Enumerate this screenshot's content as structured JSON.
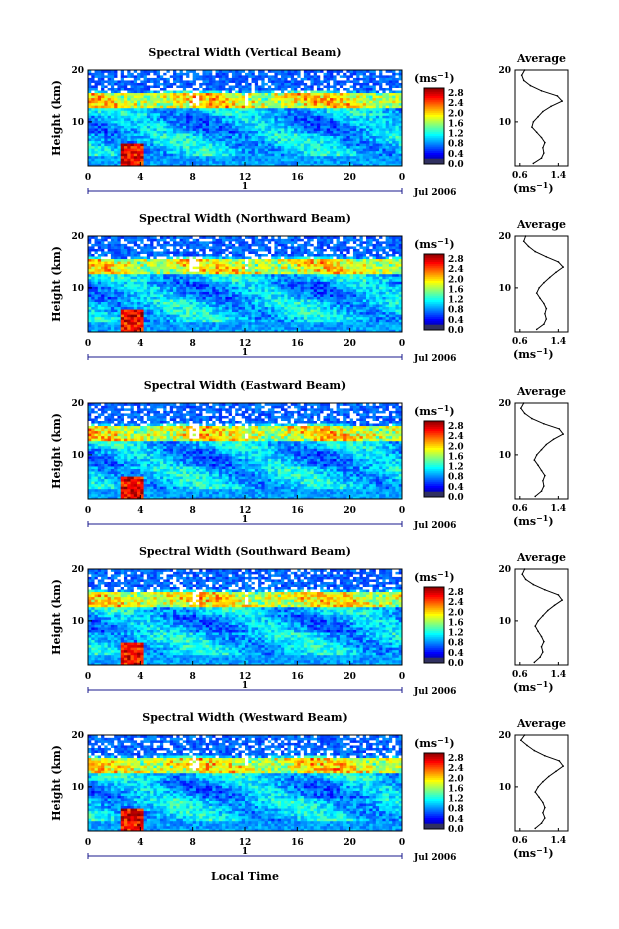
{
  "figure": {
    "xlabel": "Local Time",
    "colorbar_unit": "(ms",
    "colorbar_exponent": "−1",
    "profile_unit": "(ms",
    "profile_exponent": "−1",
    "date_label": "Jul 2006",
    "day_marker_label": "1"
  },
  "chart_data": [
    {
      "type": "heatmap",
      "title": "Spectral Width (Vertical Beam)",
      "ylabel": "Height (km)",
      "x_ticks": [
        "0",
        "4",
        "8",
        "12",
        "16",
        "20",
        "0"
      ],
      "y_ticks": [
        "20",
        "10"
      ],
      "xlim": [
        0,
        24
      ],
      "ylim": [
        1.5,
        20
      ],
      "colorbar_ticks": [
        "2.8",
        "2.4",
        "2.0",
        "1.6",
        "1.2",
        "0.8",
        "0.4",
        "0.0"
      ],
      "colorbar_range": [
        0.0,
        3.0
      ],
      "profile": {
        "title": "Average",
        "x_ticks": [
          "0.6",
          "1.4"
        ],
        "y_ticks": [
          "20",
          "10"
        ],
        "xlim": [
          0.5,
          1.6
        ],
        "heights": [
          2,
          3,
          4,
          5,
          6,
          7,
          8,
          9,
          10,
          11,
          12,
          13,
          14,
          15,
          16,
          17,
          18,
          19,
          20
        ],
        "values": [
          0.88,
          1.05,
          1.1,
          1.08,
          1.12,
          1.05,
          0.95,
          0.85,
          0.88,
          0.98,
          1.08,
          1.25,
          1.48,
          1.38,
          1.05,
          0.82,
          0.68,
          0.64,
          0.7
        ]
      }
    },
    {
      "type": "heatmap",
      "title": "Spectral Width (Northward Beam)",
      "ylabel": "Height (km)",
      "x_ticks": [
        "0",
        "4",
        "8",
        "12",
        "16",
        "20",
        "0"
      ],
      "y_ticks": [
        "20",
        "10"
      ],
      "xlim": [
        0,
        24
      ],
      "ylim": [
        1.5,
        20
      ],
      "colorbar_ticks": [
        "2.8",
        "2.4",
        "2.0",
        "1.6",
        "1.2",
        "0.8",
        "0.4",
        "0.0"
      ],
      "colorbar_range": [
        0.0,
        3.0
      ],
      "profile": {
        "title": "Average",
        "x_ticks": [
          "0.6",
          "1.4"
        ],
        "y_ticks": [
          "20",
          "10"
        ],
        "xlim": [
          0.5,
          1.6
        ],
        "heights": [
          2,
          3,
          4,
          5,
          6,
          7,
          8,
          9,
          10,
          11,
          12,
          13,
          14,
          15,
          16,
          17,
          18,
          19,
          20
        ],
        "values": [
          0.95,
          1.1,
          1.15,
          1.12,
          1.15,
          1.1,
          1.02,
          0.95,
          1.0,
          1.1,
          1.22,
          1.35,
          1.5,
          1.4,
          1.15,
          0.92,
          0.78,
          0.68,
          0.72
        ]
      }
    },
    {
      "type": "heatmap",
      "title": "Spectral Width (Eastward Beam)",
      "ylabel": "Height (km)",
      "x_ticks": [
        "0",
        "4",
        "8",
        "12",
        "16",
        "20",
        "0"
      ],
      "y_ticks": [
        "20",
        "10"
      ],
      "xlim": [
        0,
        24
      ],
      "ylim": [
        1.5,
        20
      ],
      "colorbar_ticks": [
        "2.8",
        "2.4",
        "2.0",
        "1.6",
        "1.2",
        "0.8",
        "0.4",
        "0.0"
      ],
      "colorbar_range": [
        0.0,
        3.0
      ],
      "profile": {
        "title": "Average",
        "x_ticks": [
          "0.6",
          "1.4"
        ],
        "y_ticks": [
          "20",
          "10"
        ],
        "xlim": [
          0.5,
          1.6
        ],
        "heights": [
          2,
          3,
          4,
          5,
          6,
          7,
          8,
          9,
          10,
          11,
          12,
          13,
          14,
          15,
          16,
          17,
          18,
          19,
          20
        ],
        "values": [
          0.92,
          1.05,
          1.1,
          1.08,
          1.12,
          1.05,
          0.98,
          0.9,
          0.95,
          1.05,
          1.15,
          1.3,
          1.5,
          1.42,
          1.1,
          0.85,
          0.7,
          0.62,
          0.68
        ]
      }
    },
    {
      "type": "heatmap",
      "title": "Spectral Width (Southward Beam)",
      "ylabel": "Height (km)",
      "x_ticks": [
        "0",
        "4",
        "8",
        "12",
        "16",
        "20",
        "0"
      ],
      "y_ticks": [
        "20",
        "10"
      ],
      "xlim": [
        0,
        24
      ],
      "ylim": [
        1.5,
        20
      ],
      "colorbar_ticks": [
        "2.8",
        "2.4",
        "2.0",
        "1.6",
        "1.2",
        "0.8",
        "0.4",
        "0.0"
      ],
      "colorbar_range": [
        0.0,
        3.0
      ],
      "profile": {
        "title": "Average",
        "x_ticks": [
          "0.6",
          "1.4"
        ],
        "y_ticks": [
          "20",
          "10"
        ],
        "xlim": [
          0.5,
          1.6
        ],
        "heights": [
          2,
          3,
          4,
          5,
          6,
          7,
          8,
          9,
          10,
          11,
          12,
          13,
          14,
          15,
          16,
          17,
          18,
          19,
          20
        ],
        "values": [
          0.9,
          1.02,
          1.08,
          1.05,
          1.1,
          1.05,
          0.98,
          0.92,
          0.98,
          1.08,
          1.18,
          1.32,
          1.48,
          1.4,
          1.12,
          0.88,
          0.72,
          0.65,
          0.7
        ]
      }
    },
    {
      "type": "heatmap",
      "title": "Spectral Width (Westward Beam)",
      "ylabel": "Height (km)",
      "x_ticks": [
        "0",
        "4",
        "8",
        "12",
        "16",
        "20",
        "0"
      ],
      "y_ticks": [
        "20",
        "10"
      ],
      "xlim": [
        0,
        24
      ],
      "ylim": [
        1.5,
        20
      ],
      "colorbar_ticks": [
        "2.8",
        "2.4",
        "2.0",
        "1.6",
        "1.2",
        "0.8",
        "0.4",
        "0.0"
      ],
      "colorbar_range": [
        0.0,
        3.0
      ],
      "profile": {
        "title": "Average",
        "x_ticks": [
          "0.6",
          "1.4"
        ],
        "y_ticks": [
          "20",
          "10"
        ],
        "xlim": [
          0.5,
          1.6
        ],
        "heights": [
          2,
          3,
          4,
          5,
          6,
          7,
          8,
          9,
          10,
          11,
          12,
          13,
          14,
          15,
          16,
          17,
          18,
          19,
          20
        ],
        "values": [
          0.92,
          1.05,
          1.12,
          1.08,
          1.12,
          1.08,
          1.0,
          0.92,
          0.98,
          1.08,
          1.2,
          1.35,
          1.5,
          1.42,
          1.12,
          0.9,
          0.75,
          0.62,
          0.7
        ]
      }
    }
  ]
}
